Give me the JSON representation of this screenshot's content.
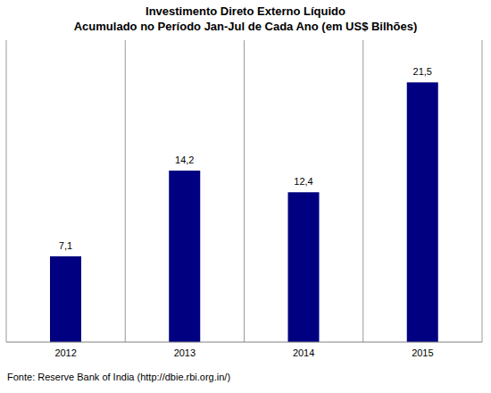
{
  "chart_data": {
    "type": "bar",
    "title": "Investimento Direto Externo Líquido",
    "subtitle": "Acumulado no Período Jan-Jul de Cada Ano (em US$ Bilhões)",
    "source": "Fonte: Reserve Bank of India (http://dbie.rbi.org.in/)",
    "categories": [
      "2012",
      "2013",
      "2014",
      "2015"
    ],
    "values": [
      7.1,
      14.2,
      12.4,
      21.5
    ],
    "value_labels": [
      "7,1",
      "14,2",
      "12,4",
      "21,5"
    ],
    "data_labels": true,
    "color": "#000080",
    "ylim": [
      0,
      25
    ],
    "grid": true,
    "tick_labels": "x"
  }
}
